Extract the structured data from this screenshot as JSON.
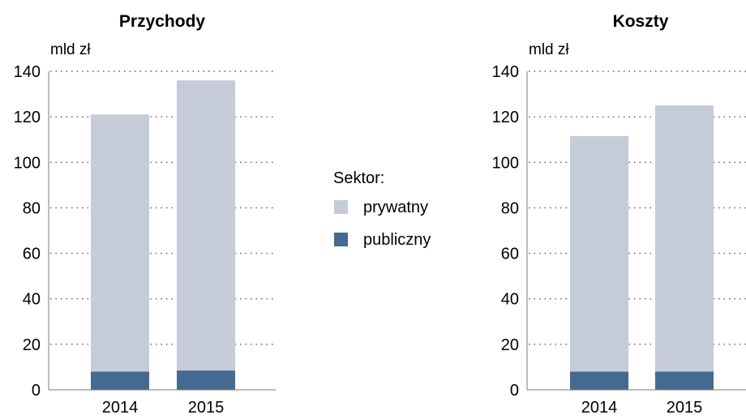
{
  "legend": {
    "title": "Sektor:",
    "items": [
      {
        "label": "prywatny",
        "color": "#c5cbd8"
      },
      {
        "label": "publiczny",
        "color": "#446a91"
      }
    ]
  },
  "chart_data": [
    {
      "type": "bar",
      "stacked": true,
      "title": "Przychody",
      "ylabel": "mld zł",
      "categories": [
        "2014",
        "2015"
      ],
      "series": [
        {
          "name": "publiczny",
          "values": [
            8,
            8.5
          ],
          "color": "#446a91"
        },
        {
          "name": "prywatny",
          "values": [
            113,
            127.5
          ],
          "color": "#c5cbd8"
        }
      ],
      "ylim": [
        0,
        140
      ],
      "yticks": [
        0,
        20,
        40,
        60,
        80,
        100,
        120,
        140
      ],
      "grid": "dotted"
    },
    {
      "type": "bar",
      "stacked": true,
      "title": "Koszty",
      "ylabel": "mld zł",
      "categories": [
        "2014",
        "2015"
      ],
      "series": [
        {
          "name": "publiczny",
          "values": [
            8,
            8
          ],
          "color": "#446a91"
        },
        {
          "name": "prywatny",
          "values": [
            103.5,
            117
          ],
          "color": "#c5cbd8"
        }
      ],
      "ylim": [
        0,
        140
      ],
      "yticks": [
        0,
        20,
        40,
        60,
        80,
        100,
        120,
        140
      ],
      "grid": "dotted"
    }
  ]
}
